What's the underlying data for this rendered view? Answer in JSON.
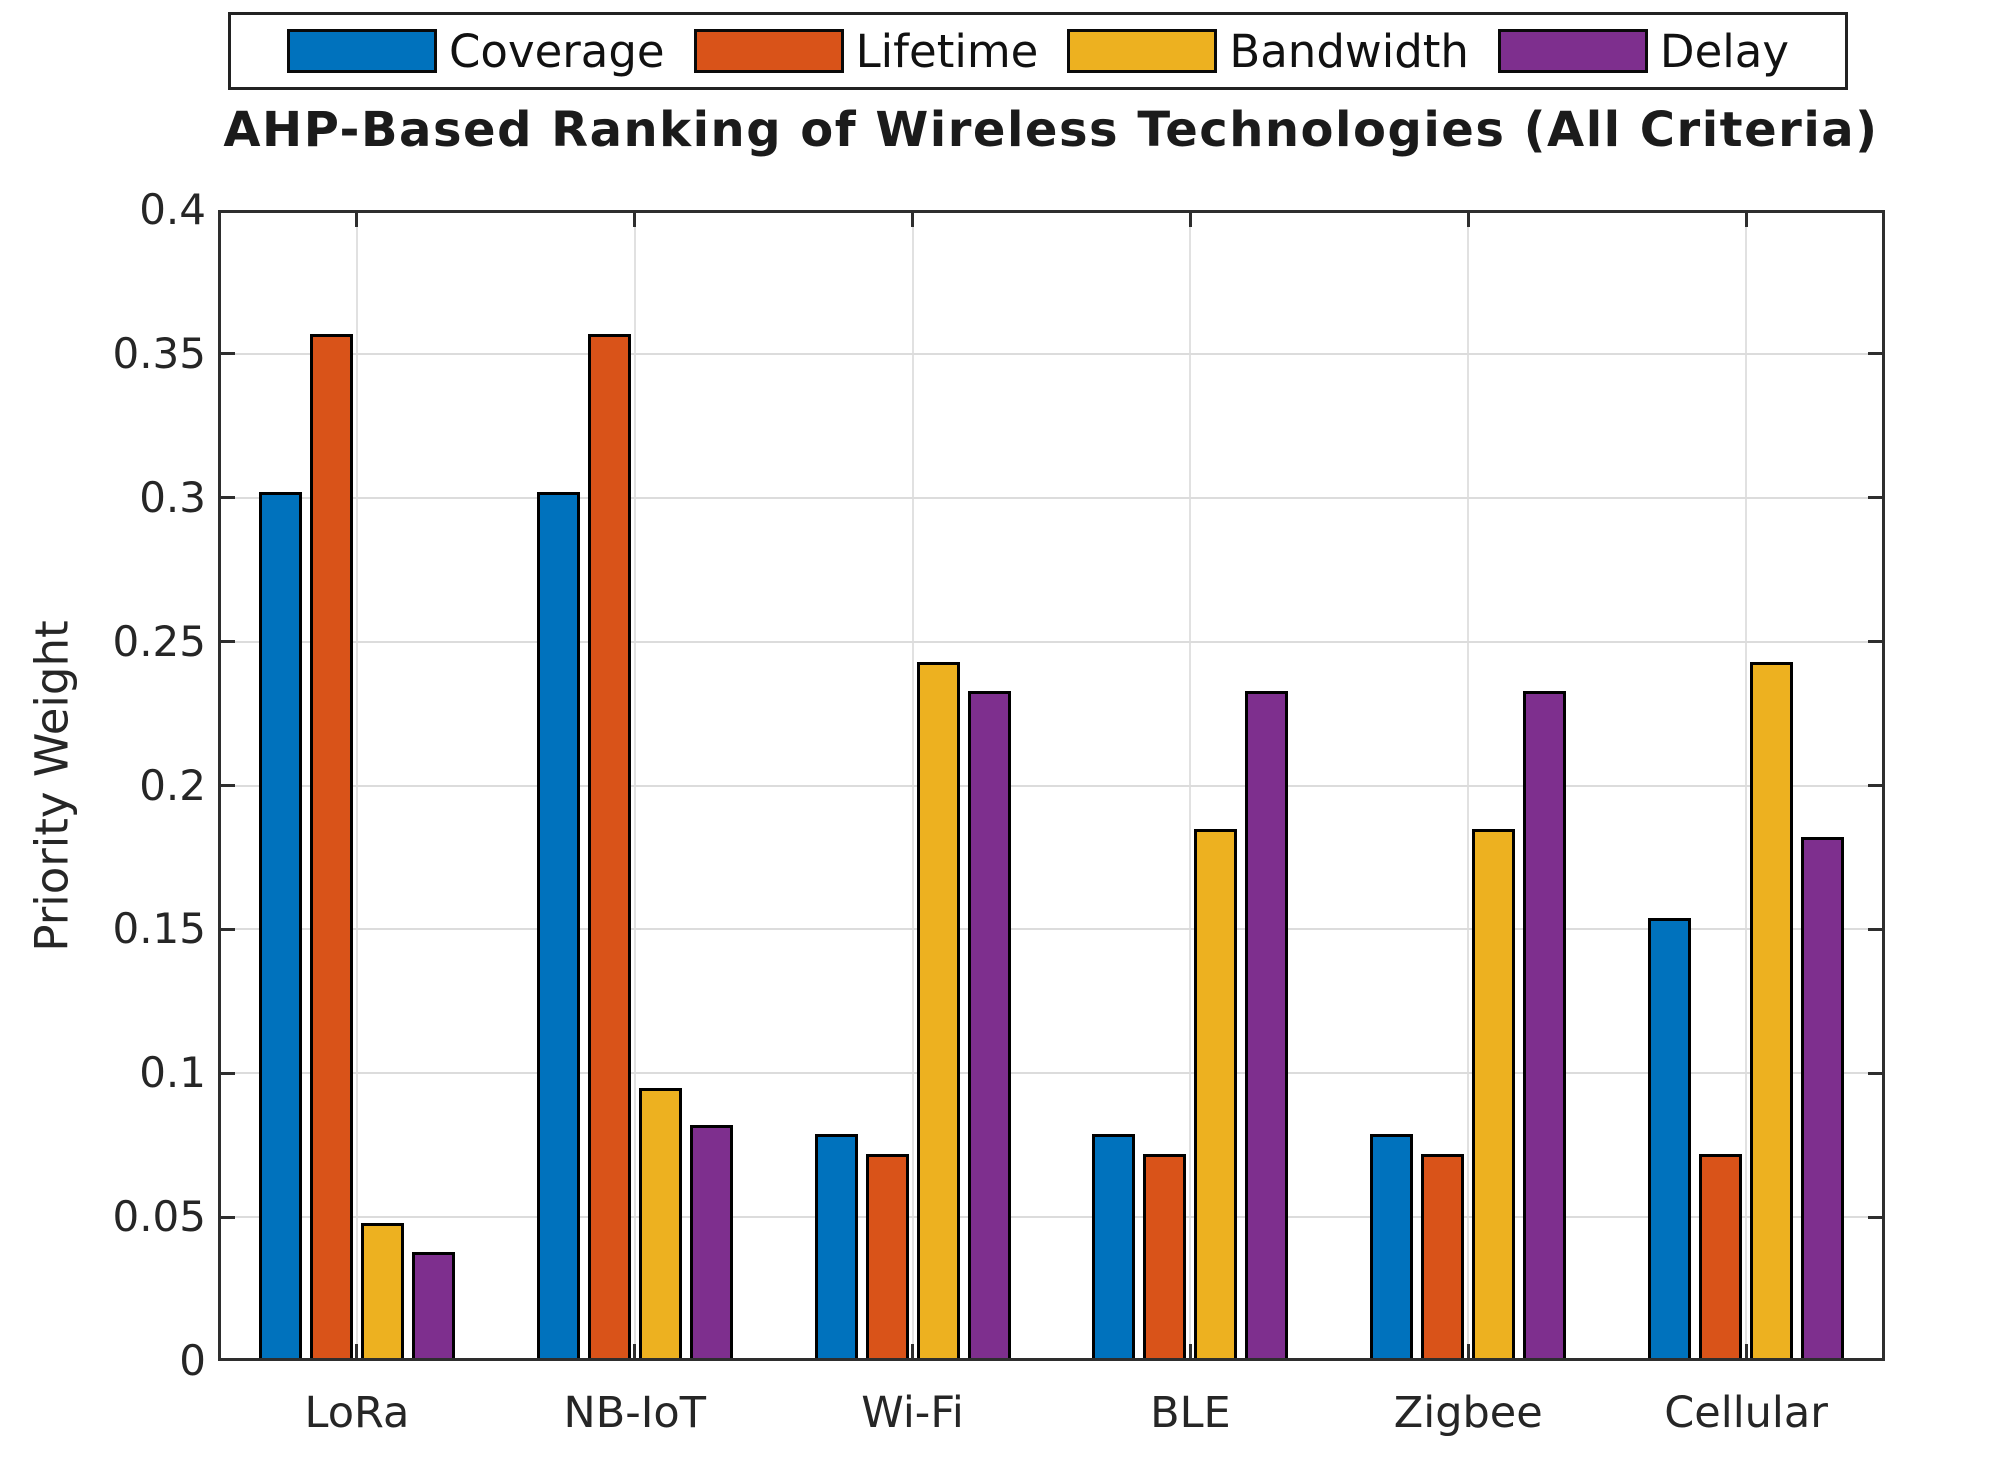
{
  "figure": {
    "title": "AHP-Based Ranking of Wireless Technologies (All Criteria)",
    "ylabel": "Priority Weight"
  },
  "legend": {
    "position": "top",
    "items": [
      {
        "label": "Coverage",
        "color": "#0072bd"
      },
      {
        "label": "Lifetime",
        "color": "#d95319"
      },
      {
        "label": "Bandwidth",
        "color": "#edb120"
      },
      {
        "label": "Delay",
        "color": "#7e2f8e"
      }
    ]
  },
  "chart_data": {
    "type": "bar",
    "title": "AHP-Based Ranking of Wireless Technologies (All Criteria)",
    "xlabel": "",
    "ylabel": "Priority Weight",
    "categories": [
      "LoRa",
      "NB-IoT",
      "Wi-Fi",
      "BLE",
      "Zigbee",
      "Cellular"
    ],
    "series": [
      {
        "name": "Coverage",
        "color": "#0072bd",
        "values": [
          0.302,
          0.302,
          0.079,
          0.079,
          0.079,
          0.154
        ]
      },
      {
        "name": "Lifetime",
        "color": "#d95319",
        "values": [
          0.357,
          0.357,
          0.072,
          0.072,
          0.072,
          0.072
        ]
      },
      {
        "name": "Bandwidth",
        "color": "#edb120",
        "values": [
          0.048,
          0.095,
          0.243,
          0.185,
          0.185,
          0.243
        ]
      },
      {
        "name": "Delay",
        "color": "#7e2f8e",
        "values": [
          0.038,
          0.082,
          0.233,
          0.233,
          0.233,
          0.182
        ]
      }
    ],
    "ylim": [
      0,
      0.4
    ],
    "ytick_labels": [
      "0",
      "0.05",
      "0.1",
      "0.15",
      "0.2",
      "0.25",
      "0.3",
      "0.35",
      "0.4"
    ],
    "grid": true,
    "bar_edge_color": "#000000",
    "legend_position": "top"
  }
}
